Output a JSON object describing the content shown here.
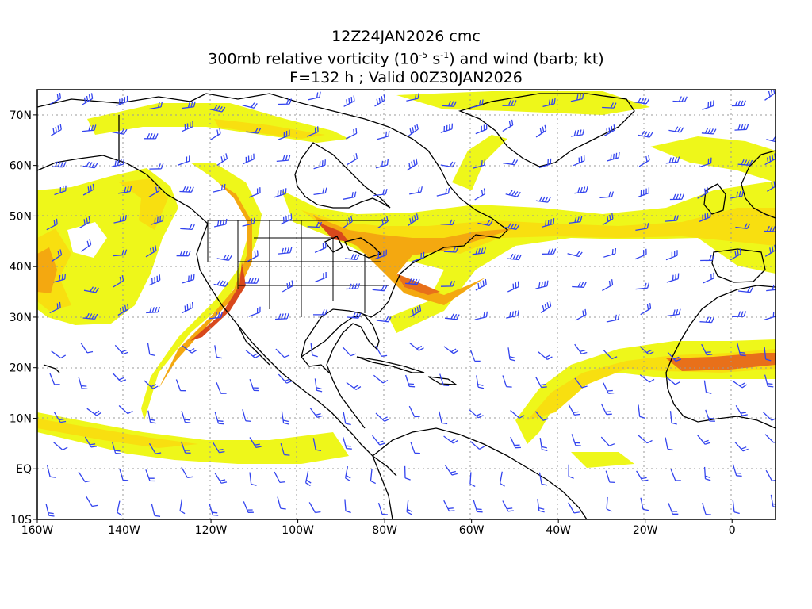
{
  "title": {
    "line1": "12Z24JAN2026 cmc",
    "line2_pre": "300mb relative vorticity (10",
    "line2_exp1": "-5",
    "line2_mid": " s",
    "line2_exp2": "-1",
    "line2_post": ") and wind (barb; kt)",
    "line3": "F=132 h ; Valid 00Z30JAN2026"
  },
  "map": {
    "lon_range": [
      -160,
      10
    ],
    "lat_range": [
      -10,
      75
    ],
    "lon_ticks": [
      {
        "value": -160,
        "label": "160W"
      },
      {
        "value": -140,
        "label": "140W"
      },
      {
        "value": -120,
        "label": "120W"
      },
      {
        "value": -100,
        "label": "100W"
      },
      {
        "value": -80,
        "label": "80W"
      },
      {
        "value": -60,
        "label": "60W"
      },
      {
        "value": -40,
        "label": "40W"
      },
      {
        "value": -20,
        "label": "20W"
      },
      {
        "value": 0,
        "label": "0"
      }
    ],
    "lat_ticks": [
      {
        "value": 70,
        "label": "70N"
      },
      {
        "value": 60,
        "label": "60N"
      },
      {
        "value": 50,
        "label": "50N"
      },
      {
        "value": 40,
        "label": "40N"
      },
      {
        "value": 30,
        "label": "30N"
      },
      {
        "value": 20,
        "label": "20N"
      },
      {
        "value": 10,
        "label": "10N"
      },
      {
        "value": 0,
        "label": "EQ"
      },
      {
        "value": -10,
        "label": "10S"
      }
    ],
    "colors": {
      "shade_light": "#eef71a",
      "shade_yellow": "#f8df10",
      "shade_orange": "#f4a810",
      "shade_dark": "#e8701a",
      "shade_red": "#d8481c",
      "coastline": "#000000",
      "barb": "#3344ee",
      "grid": "#999999"
    }
  }
}
